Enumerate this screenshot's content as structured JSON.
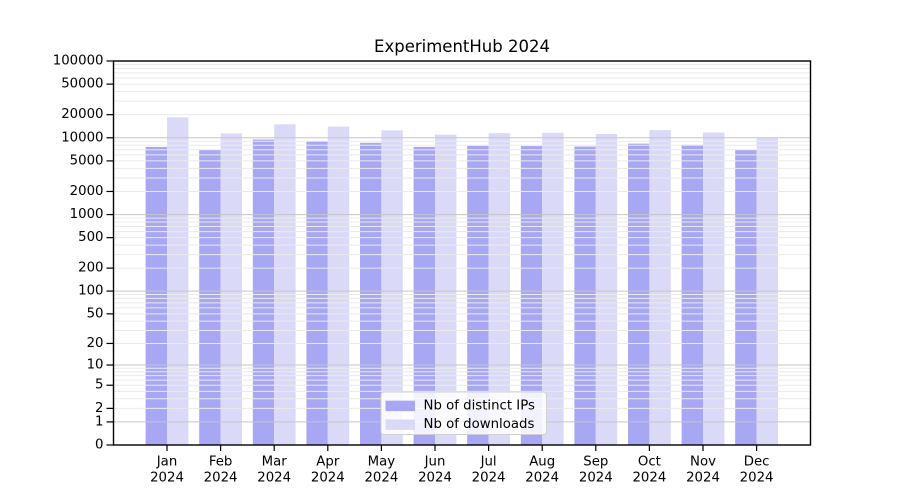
{
  "chart_data": {
    "type": "bar",
    "title": "ExperimentHub 2024",
    "categories": [
      "Jan",
      "Feb",
      "Mar",
      "Apr",
      "May",
      "Jun",
      "Jul",
      "Aug",
      "Sep",
      "Oct",
      "Nov",
      "Dec"
    ],
    "category_year_suffix": "2024",
    "series": [
      {
        "name": "Nb of distinct IPs",
        "color": "#a7a7f4",
        "values": [
          7600,
          6950,
          9500,
          9000,
          8600,
          7600,
          7850,
          7800,
          7700,
          8400,
          8100,
          6950
        ]
      },
      {
        "name": "Nb of downloads",
        "color": "#dadaf8",
        "values": [
          18500,
          11400,
          15000,
          14000,
          12500,
          11000,
          11500,
          11600,
          11200,
          12600,
          11700,
          10100
        ]
      }
    ],
    "y_axis": {
      "scale": "log1p",
      "range": [
        0,
        100000
      ],
      "tick_labels": [
        100000,
        50000,
        20000,
        10000,
        5000,
        2000,
        1000,
        500,
        200,
        100,
        50,
        20,
        10,
        5,
        2,
        1,
        0
      ],
      "grid": true,
      "minor_grid": true
    },
    "x_axis": {
      "tick_label_lines": 2
    },
    "legend": {
      "position": "bottom-center",
      "entries": [
        "Nb of distinct IPs",
        "Nb of downloads"
      ]
    },
    "style_colors": {
      "background": "#ffffff",
      "minor_gridline": "#eaeaea",
      "major_gridline": "#c6c6c6",
      "frame": "#000000",
      "legend_border": "#d0d0d0",
      "legend_background": "#ffffff"
    }
  }
}
